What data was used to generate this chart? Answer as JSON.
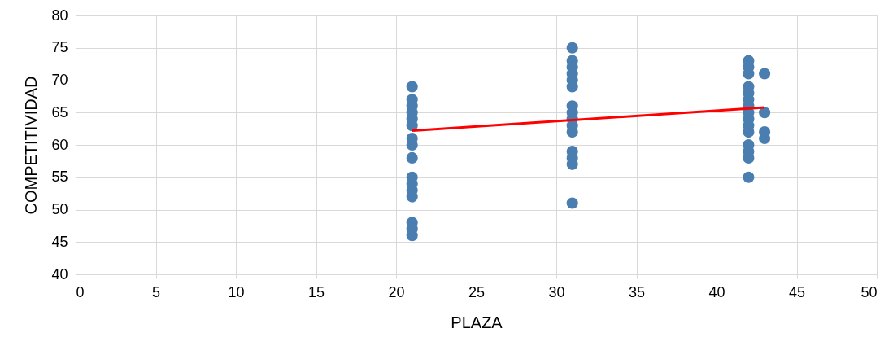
{
  "chart_data": {
    "type": "scatter",
    "xlabel": "PLAZA",
    "ylabel": "COMPETITIVIDAD",
    "xlim": [
      0,
      50
    ],
    "xticks": [
      0,
      5,
      10,
      15,
      20,
      25,
      30,
      35,
      40,
      45,
      50
    ],
    "ylim": [
      40,
      80
    ],
    "yticks": [
      40,
      45,
      50,
      55,
      60,
      65,
      70,
      75,
      80
    ],
    "grid": true,
    "series": [
      {
        "marker": "circle",
        "color": "#4a7eb0",
        "x": [
          21,
          21,
          21,
          21,
          21,
          21,
          21,
          21,
          21,
          21,
          21,
          21,
          21,
          21,
          21,
          21,
          31,
          31,
          31,
          31,
          31,
          31,
          31,
          31,
          31,
          31,
          31,
          31,
          31,
          31,
          31,
          42,
          42,
          42,
          42,
          42,
          42,
          42,
          42,
          42,
          42,
          42,
          42,
          42,
          42,
          42,
          43,
          43,
          43,
          43
        ],
        "values": [
          69,
          67,
          66,
          65,
          64,
          63,
          61,
          60,
          58,
          55,
          54,
          53,
          52,
          48,
          47,
          46,
          75,
          73,
          72,
          71,
          70,
          69,
          66,
          65,
          64,
          63,
          62,
          59,
          58,
          57,
          51,
          73,
          72,
          71,
          69,
          68,
          67,
          66,
          65,
          64,
          63,
          62,
          60,
          59,
          58,
          55,
          71,
          65,
          62,
          61
        ]
      },
      {
        "type": "line",
        "color": "#ff0000",
        "x": [
          21,
          43
        ],
        "values": [
          62.2,
          65.8
        ]
      }
    ]
  }
}
